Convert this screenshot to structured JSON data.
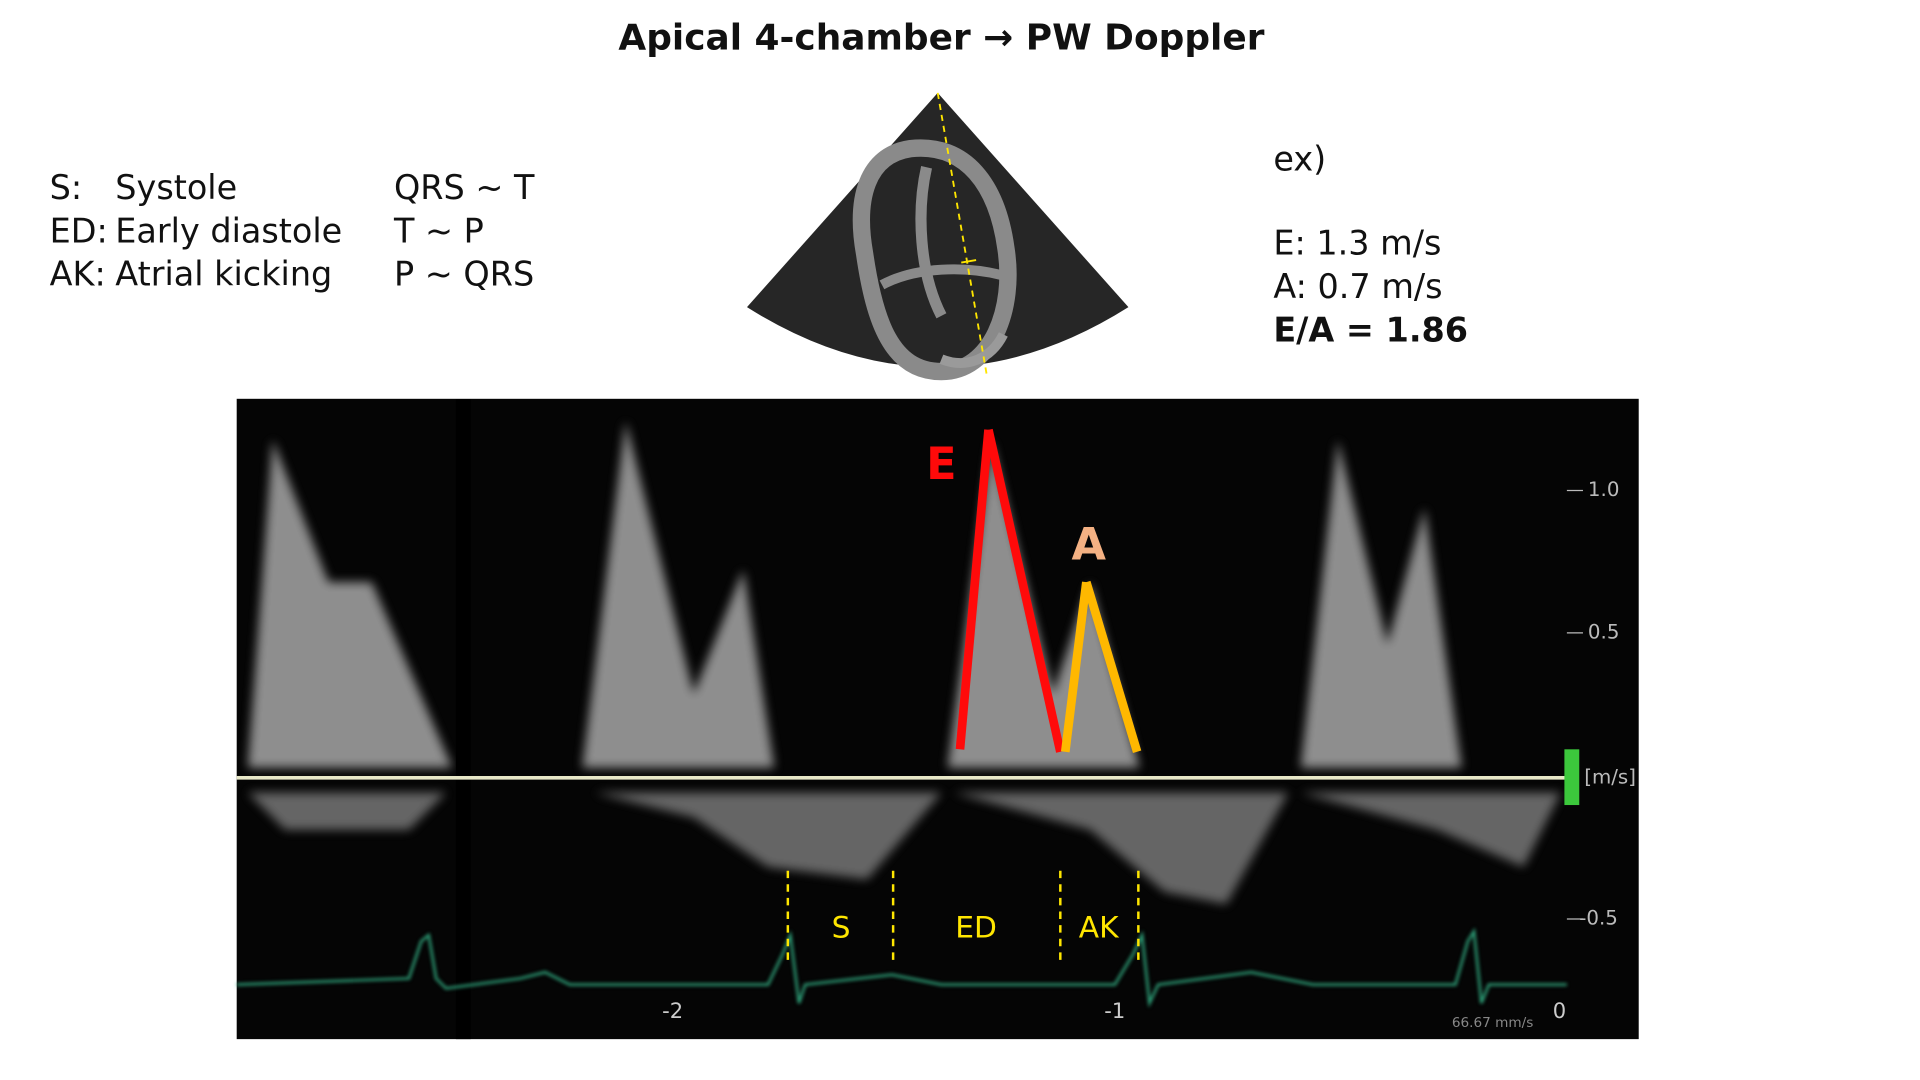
{
  "title": "Apical 4-chamber → PW Doppler",
  "legend": [
    {
      "abbr": "S:",
      "term": "Systole",
      "interval": "QRS ~ T"
    },
    {
      "abbr": "ED:",
      "term": "Early diastole",
      "interval": "T ~ P"
    },
    {
      "abbr": "AK:",
      "term": "Atrial kicking",
      "interval": "P ~ QRS"
    }
  ],
  "example": {
    "label": "ex)",
    "lines": [
      "E: 1.3 m/s",
      "A: 0.7 m/s"
    ],
    "result": "E/A = 1.86"
  },
  "doppler": {
    "peaks": {
      "e": "E",
      "a": "A"
    },
    "phases": [
      "S",
      "ED",
      "AK"
    ],
    "y_ticks": [
      "1.0",
      "0.5",
      "-0.5"
    ],
    "unit": "[m/s]",
    "x_ticks": [
      "-2",
      "-1",
      "0"
    ],
    "sweep": "66.67 mm/s"
  }
}
